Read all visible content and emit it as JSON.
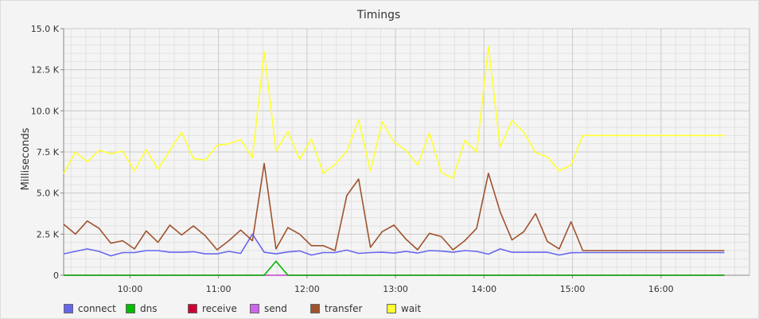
{
  "chart_data": {
    "type": "line",
    "title": "Timings",
    "xlabel": "",
    "ylabel": "Milliseconds",
    "x_ticks": [
      "10:00",
      "11:00",
      "12:00",
      "13:00",
      "14:00",
      "15:00",
      "16:00"
    ],
    "x_tick_minutes": [
      600,
      660,
      720,
      780,
      840,
      900,
      960
    ],
    "xlim_minutes": [
      555,
      1020
    ],
    "y_ticks": [
      "0",
      "2.5 K",
      "5.0 K",
      "7.5 K",
      "10.0 K",
      "12.5 K",
      "15.0 K"
    ],
    "y_tick_values": [
      0,
      2500,
      5000,
      7500,
      10000,
      12500,
      15000
    ],
    "ylim": [
      0,
      15000
    ],
    "grid": true,
    "legend_position": "bottom",
    "x_minutes": [
      555,
      563,
      571,
      579,
      587,
      595,
      603,
      611,
      619,
      627,
      635,
      643,
      651,
      659,
      667,
      675,
      683,
      691,
      699,
      707,
      715,
      723,
      731,
      739,
      747,
      755,
      763,
      771,
      779,
      787,
      795,
      803,
      811,
      819,
      827,
      835,
      843,
      851,
      859,
      867,
      875,
      883,
      891,
      899,
      907,
      915,
      923,
      931,
      939,
      947,
      955,
      963,
      971,
      979,
      987,
      995,
      1003
    ],
    "series": [
      {
        "name": "connect",
        "color": "#6666ee",
        "values": [
          1300,
          1450,
          1600,
          1450,
          1180,
          1380,
          1380,
          1500,
          1500,
          1400,
          1400,
          1430,
          1300,
          1300,
          1450,
          1330,
          2500,
          1400,
          1300,
          1420,
          1480,
          1230,
          1380,
          1380,
          1530,
          1330,
          1380,
          1400,
          1350,
          1450,
          1350,
          1500,
          1470,
          1400,
          1500,
          1450,
          1280,
          1600,
          1400,
          1400,
          1400,
          1400,
          1230,
          1370,
          1380,
          1380,
          1380,
          1380,
          1380,
          1380,
          1380,
          1380,
          1380,
          1380,
          1380,
          1380,
          1380
        ]
      },
      {
        "name": "dns",
        "color": "#00bb00",
        "values": [
          0,
          0,
          0,
          0,
          0,
          0,
          0,
          0,
          0,
          0,
          0,
          0,
          0,
          0,
          0,
          0,
          0,
          0,
          850,
          0,
          0,
          0,
          0,
          0,
          0,
          0,
          0,
          0,
          0,
          0,
          0,
          0,
          0,
          0,
          0,
          0,
          0,
          0,
          0,
          0,
          0,
          0,
          0,
          0,
          0,
          0,
          0,
          0,
          0,
          0,
          0,
          0,
          0,
          0,
          0,
          0,
          0
        ]
      },
      {
        "name": "receive",
        "color": "#cc0033",
        "values": [
          0,
          0,
          0,
          0,
          0,
          0,
          0,
          0,
          0,
          0,
          0,
          0,
          0,
          0,
          0,
          0,
          0,
          0,
          0,
          0,
          0,
          0,
          0,
          0,
          0,
          0,
          0,
          0,
          0,
          0,
          0,
          0,
          0,
          0,
          0,
          0,
          0,
          0,
          0,
          0,
          0,
          0,
          0,
          0,
          0,
          0,
          0,
          0,
          0,
          0,
          0,
          0,
          0,
          0,
          0,
          0,
          0
        ]
      },
      {
        "name": "send",
        "color": "#cc66ee",
        "values": [
          0,
          0,
          0,
          0,
          0,
          0,
          0,
          0,
          0,
          0,
          0,
          0,
          0,
          0,
          0,
          0,
          0,
          0,
          0,
          0,
          0,
          0,
          0,
          0,
          0,
          0,
          0,
          0,
          0,
          0,
          0,
          0,
          0,
          0,
          0,
          0,
          0,
          0,
          0,
          0,
          0,
          0,
          0,
          0,
          0,
          0,
          0,
          0,
          0,
          0,
          0,
          0,
          0,
          0,
          0,
          0,
          0
        ]
      },
      {
        "name": "transfer",
        "color": "#a0522d",
        "values": [
          3100,
          2500,
          3300,
          2850,
          1950,
          2100,
          1600,
          2700,
          2000,
          3050,
          2450,
          3000,
          2400,
          1550,
          2100,
          2750,
          2100,
          6800,
          1600,
          2900,
          2500,
          1800,
          1800,
          1500,
          4850,
          5850,
          1700,
          2650,
          3050,
          2200,
          1550,
          2550,
          2350,
          1550,
          2100,
          2850,
          6200,
          3850,
          2150,
          2650,
          3750,
          2050,
          1600,
          3250,
          1500,
          1500,
          1500,
          1500,
          1500,
          1500,
          1500,
          1500,
          1500,
          1500,
          1500,
          1500,
          1500
        ]
      },
      {
        "name": "wait",
        "color": "#ffff33",
        "values": [
          6200,
          7500,
          6900,
          7600,
          7400,
          7550,
          6350,
          7650,
          6450,
          7600,
          8700,
          7100,
          7000,
          7900,
          8000,
          8250,
          7150,
          13600,
          7550,
          8750,
          7050,
          8300,
          6200,
          6750,
          7550,
          9450,
          6350,
          9350,
          8100,
          7600,
          6700,
          8650,
          6250,
          5900,
          8200,
          7500,
          13900,
          7800,
          9400,
          8700,
          7450,
          7200,
          6350,
          6700,
          8500,
          8500,
          8500,
          8500,
          8500,
          8500,
          8500,
          8500,
          8500,
          8500,
          8500,
          8500,
          8500
        ]
      }
    ]
  }
}
